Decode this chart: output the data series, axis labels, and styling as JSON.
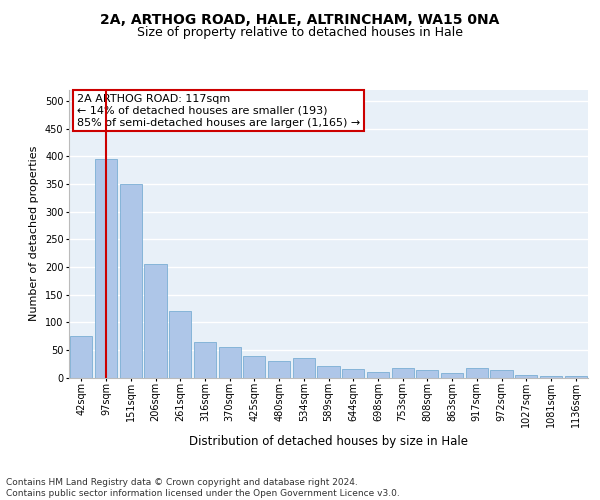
{
  "title": "2A, ARTHOG ROAD, HALE, ALTRINCHAM, WA15 0NA",
  "subtitle": "Size of property relative to detached houses in Hale",
  "xlabel": "Distribution of detached houses by size in Hale",
  "ylabel": "Number of detached properties",
  "bar_labels": [
    "42sqm",
    "97sqm",
    "151sqm",
    "206sqm",
    "261sqm",
    "316sqm",
    "370sqm",
    "425sqm",
    "480sqm",
    "534sqm",
    "589sqm",
    "644sqm",
    "698sqm",
    "753sqm",
    "808sqm",
    "863sqm",
    "917sqm",
    "972sqm",
    "1027sqm",
    "1081sqm",
    "1136sqm"
  ],
  "bar_values": [
    75,
    395,
    350,
    205,
    120,
    65,
    55,
    38,
    30,
    35,
    20,
    15,
    10,
    18,
    13,
    8,
    17,
    13,
    5,
    3,
    2
  ],
  "bar_color": "#aec6e8",
  "bar_edge_color": "#7aaed4",
  "background_color": "#e8f0f8",
  "grid_color": "#ffffff",
  "annotation_text": "2A ARTHOG ROAD: 117sqm\n← 14% of detached houses are smaller (193)\n85% of semi-detached houses are larger (1,165) →",
  "annotation_box_color": "#ffffff",
  "annotation_box_edge_color": "#cc0000",
  "vline_x": 1,
  "vline_color": "#cc0000",
  "ylim": [
    0,
    520
  ],
  "yticks": [
    0,
    50,
    100,
    150,
    200,
    250,
    300,
    350,
    400,
    450,
    500
  ],
  "footer_text": "Contains HM Land Registry data © Crown copyright and database right 2024.\nContains public sector information licensed under the Open Government Licence v3.0.",
  "title_fontsize": 10,
  "subtitle_fontsize": 9,
  "xlabel_fontsize": 8.5,
  "ylabel_fontsize": 8,
  "tick_fontsize": 7,
  "annotation_fontsize": 8,
  "footer_fontsize": 6.5
}
